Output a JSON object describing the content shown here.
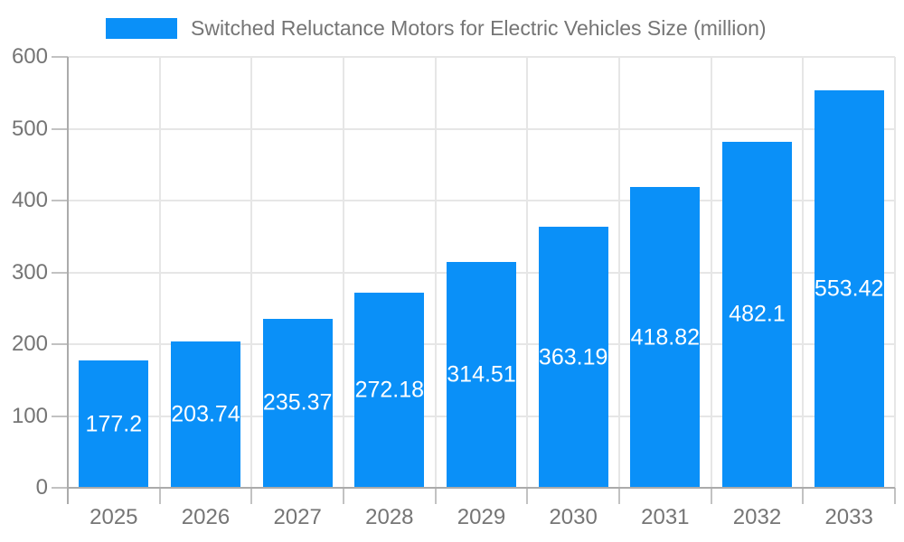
{
  "chart_data": {
    "type": "bar",
    "title": "Switched Reluctance Motors for Electric Vehicles Size (million)",
    "categories": [
      "2025",
      "2026",
      "2027",
      "2028",
      "2029",
      "2030",
      "2031",
      "2032",
      "2033"
    ],
    "series": [
      {
        "name": "Switched Reluctance Motors for Electric Vehicles Size (million)",
        "values": [
          177.2,
          203.74,
          235.37,
          272.18,
          314.51,
          363.19,
          418.82,
          482.1,
          553.42
        ]
      }
    ],
    "value_labels": [
      "177.2",
      "203.74",
      "235.37",
      "272.18",
      "314.51",
      "363.19",
      "418.82",
      "482.1",
      "553.42"
    ],
    "xlabel": "",
    "ylabel": "",
    "ylim": [
      0,
      600
    ],
    "yticks": [
      0,
      100,
      200,
      300,
      400,
      500,
      600
    ],
    "grid": true,
    "legend_position": "top",
    "value_label_position": "inside-center",
    "colors": {
      "bar": "#0A90F8",
      "grid": "#e6e6e6",
      "axis": "#ababab",
      "tick": "#c2c2c2",
      "text": "#757575",
      "value_label": "#ffffff",
      "background": "#ffffff"
    }
  }
}
